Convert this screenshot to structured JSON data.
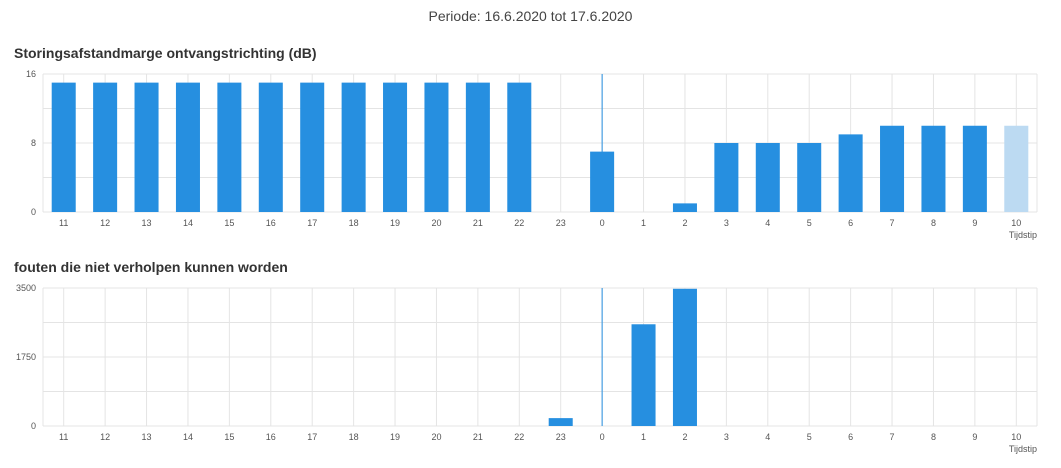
{
  "period_label": "Periode: 16.6.2020 tot 17.6.2020",
  "colors": {
    "bar": "#268fe0",
    "bar_light": "#bcdaf2",
    "grid": "#e4e4e4",
    "marker": "#268fe0",
    "axis_text": "#555555"
  },
  "chart_data": [
    {
      "type": "bar",
      "title": "Storingsafstandmarge ontvangstrichting (dB)",
      "xlabel": "Tijdstip",
      "ylabel": "",
      "categories": [
        "11",
        "12",
        "13",
        "14",
        "15",
        "16",
        "17",
        "18",
        "19",
        "20",
        "21",
        "22",
        "23",
        "0",
        "1",
        "2",
        "3",
        "4",
        "5",
        "6",
        "7",
        "8",
        "9",
        "10"
      ],
      "values": [
        15,
        15,
        15,
        15,
        15,
        15,
        15,
        15,
        15,
        15,
        15,
        15,
        0,
        7,
        0,
        1,
        8,
        8,
        8,
        9,
        10,
        10,
        10,
        10
      ],
      "highlight_last": true,
      "ylim": [
        0,
        16
      ],
      "yticks": [
        "0",
        "8",
        "16"
      ],
      "day_marker_category": "0",
      "grid": true
    },
    {
      "type": "bar",
      "title": "fouten die niet verholpen kunnen worden",
      "xlabel": "Tijdstip",
      "ylabel": "",
      "categories": [
        "11",
        "12",
        "13",
        "14",
        "15",
        "16",
        "17",
        "18",
        "19",
        "20",
        "21",
        "22",
        "23",
        "0",
        "1",
        "2",
        "3",
        "4",
        "5",
        "6",
        "7",
        "8",
        "9",
        "10"
      ],
      "values": [
        0,
        0,
        0,
        0,
        0,
        0,
        0,
        0,
        0,
        0,
        0,
        0,
        200,
        0,
        2580,
        3480,
        0,
        0,
        0,
        0,
        0,
        0,
        0,
        0
      ],
      "highlight_last": false,
      "ylim": [
        0,
        3500
      ],
      "yticks": [
        "0",
        "1750",
        "3500"
      ],
      "day_marker_category": "0",
      "grid": true
    }
  ]
}
